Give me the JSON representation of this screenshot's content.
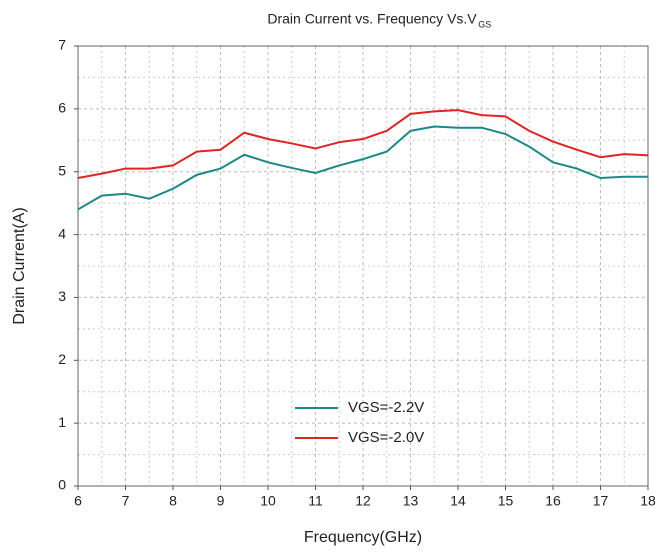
{
  "chart_data": {
    "type": "line",
    "title": "Drain Current vs. Frequency Vs.V",
    "title_subscript": "GS",
    "x_label": "Frequency(GHz)",
    "y_label": "Drain Current(A)",
    "x": [
      6,
      6.5,
      7,
      7.5,
      8,
      8.5,
      9,
      9.5,
      10,
      10.5,
      11,
      11.5,
      12,
      12.5,
      13,
      13.5,
      14,
      14.5,
      15,
      15.5,
      16,
      16.5,
      17,
      17.5,
      18
    ],
    "series": [
      {
        "name": "VGS=-2.2V",
        "color": "#1a8a88",
        "values": [
          4.4,
          4.62,
          4.65,
          4.57,
          4.73,
          4.95,
          5.05,
          5.27,
          5.15,
          5.06,
          4.98,
          5.1,
          5.2,
          5.32,
          5.65,
          5.72,
          5.7,
          5.7,
          5.6,
          5.4,
          5.15,
          5.05,
          4.9,
          4.92,
          4.92
        ]
      },
      {
        "name": "VGS=-2.0V",
        "color": "#e02424",
        "values": [
          4.9,
          4.97,
          5.05,
          5.05,
          5.1,
          5.32,
          5.35,
          5.62,
          5.52,
          5.45,
          5.37,
          5.47,
          5.52,
          5.65,
          5.92,
          5.96,
          5.98,
          5.9,
          5.88,
          5.65,
          5.48,
          5.35,
          5.23,
          5.28,
          5.26
        ]
      }
    ],
    "xlim": [
      6,
      18
    ],
    "xticks": [
      6,
      7,
      8,
      9,
      10,
      11,
      12,
      13,
      14,
      15,
      16,
      17,
      18
    ],
    "ylim": [
      0,
      7
    ],
    "yticks": [
      0,
      1,
      2,
      3,
      4,
      5,
      6,
      7
    ],
    "grid": true,
    "minor_grid": true,
    "legend": "lower center"
  }
}
